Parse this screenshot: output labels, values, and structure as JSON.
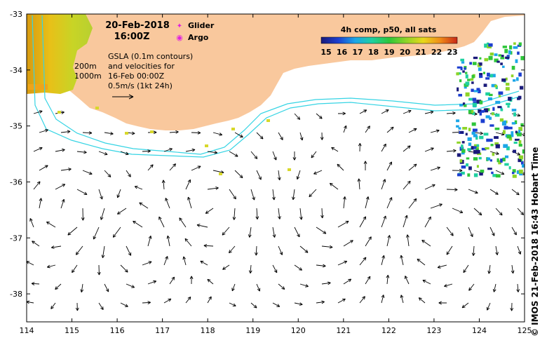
{
  "title": {
    "date": "20-Feb-2018",
    "time": "16:00Z"
  },
  "legend_markers": [
    {
      "label": "Glider",
      "symbol": "✦",
      "color": "#e020e0"
    },
    {
      "label": "Argo",
      "symbol": "◉",
      "color": "#e020e0"
    }
  ],
  "gsla_note": {
    "line1": "GSLA (0.1m contours)",
    "line2": "and velocities for",
    "line3": "16-Feb 00:00Z",
    "line4": "0.5m/s (1kt 24h)"
  },
  "isobaths": {
    "label_shallow": "200m",
    "label_deep": "1000m",
    "color": "#36d4e4"
  },
  "colorbar": {
    "title": "4h comp, p50, all sats",
    "ticks": [
      "15",
      "16",
      "17",
      "18",
      "19",
      "20",
      "21",
      "22",
      "23"
    ],
    "stops": [
      "#1a1a7a",
      "#1c3fd0",
      "#1ca6e8",
      "#1fd0a0",
      "#2ec63a",
      "#8ed428",
      "#e8d81c",
      "#f08c18",
      "#c82818"
    ]
  },
  "colors": {
    "land": "#f9c89d",
    "arrow": "#000000"
  },
  "axes": {
    "lon_range": [
      114,
      125
    ],
    "lat_range": [
      -38.5,
      -33
    ],
    "x_ticks": [
      "114",
      "115",
      "116",
      "117",
      "118",
      "119",
      "120",
      "121",
      "122",
      "123",
      "124",
      "125"
    ],
    "y_ticks": [
      "-33",
      "-34",
      "-35",
      "-36",
      "-37",
      "-38"
    ]
  },
  "credit": "© IMOS 21-Feb-2018 16:43 Hobart Time"
}
